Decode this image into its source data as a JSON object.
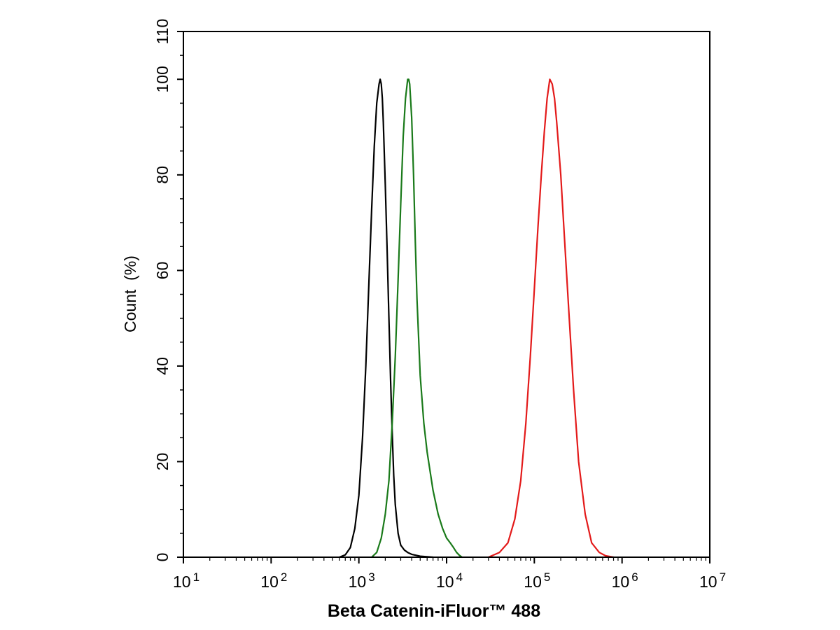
{
  "chart_data": {
    "type": "line",
    "title": "",
    "xlabel": "Beta Catenin-iFluor™ 488",
    "ylabel": "Count  (%)",
    "x_scale": "log",
    "xlim": [
      10,
      10000000
    ],
    "ylim": [
      0,
      110
    ],
    "x_ticks": [
      {
        "value": 10,
        "base": "10",
        "exp": "1"
      },
      {
        "value": 100,
        "base": "10",
        "exp": "2"
      },
      {
        "value": 1000,
        "base": "10",
        "exp": "3"
      },
      {
        "value": 10000,
        "base": "10",
        "exp": "4"
      },
      {
        "value": 100000,
        "base": "10",
        "exp": "5"
      },
      {
        "value": 1000000,
        "base": "10",
        "exp": "6"
      },
      {
        "value": 10000000,
        "base": "10",
        "exp": "7"
      }
    ],
    "y_ticks": [
      "0",
      "20",
      "40",
      "60",
      "80",
      "100",
      "110"
    ],
    "grid": false,
    "legend": "none",
    "series": [
      {
        "color": "#000000",
        "x": [
          600,
          700,
          800,
          900,
          1000,
          1100,
          1200,
          1300,
          1400,
          1500,
          1600,
          1700,
          1750,
          1800,
          1850,
          1900,
          2000,
          2100,
          2200,
          2300,
          2400,
          2500,
          2600,
          2800,
          3000,
          3300,
          3600,
          4000,
          4500,
          5000,
          6000,
          7000
        ],
        "y": [
          0,
          0.5,
          2,
          6,
          13,
          25,
          40,
          57,
          73,
          86,
          95,
          99,
          100,
          99,
          96,
          91,
          78,
          64,
          50,
          37,
          26,
          17,
          11,
          5,
          2.5,
          1.5,
          1,
          0.6,
          0.4,
          0.2,
          0.1,
          0
        ]
      },
      {
        "color": "#1a7a1a",
        "x": [
          1400,
          1600,
          1800,
          2000,
          2200,
          2400,
          2600,
          2800,
          3000,
          3200,
          3400,
          3600,
          3700,
          3800,
          4000,
          4200,
          4400,
          4600,
          5000,
          5500,
          6000,
          7000,
          8000,
          9000,
          10000,
          11000,
          12000,
          13000,
          14000,
          15000
        ],
        "y": [
          0,
          1,
          4,
          9,
          16,
          28,
          42,
          58,
          74,
          88,
          96,
          100,
          100,
          99,
          92,
          80,
          66,
          54,
          38,
          28,
          22,
          14,
          9,
          6,
          4,
          3,
          2,
          1,
          0.4,
          0
        ]
      },
      {
        "color": "#e31a1a",
        "x": [
          30000,
          40000,
          50000,
          60000,
          70000,
          80000,
          90000,
          100000,
          110000,
          120000,
          130000,
          140000,
          150000,
          160000,
          170000,
          180000,
          200000,
          220000,
          250000,
          280000,
          320000,
          380000,
          450000,
          550000,
          650000,
          800000
        ],
        "y": [
          0,
          1,
          3,
          8,
          16,
          28,
          42,
          56,
          69,
          80,
          89,
          96,
          100,
          99,
          96,
          91,
          80,
          67,
          50,
          35,
          20,
          9,
          3,
          1,
          0.3,
          0
        ]
      }
    ]
  }
}
